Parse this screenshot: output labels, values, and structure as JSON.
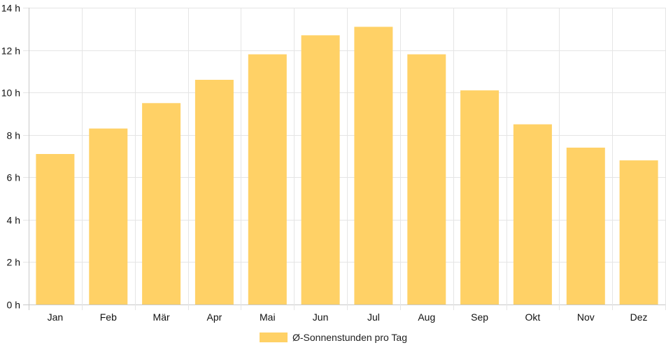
{
  "chart_data": {
    "type": "bar",
    "categories": [
      "Jan",
      "Feb",
      "Mär",
      "Apr",
      "Mai",
      "Jun",
      "Jul",
      "Aug",
      "Sep",
      "Okt",
      "Nov",
      "Dez"
    ],
    "series": [
      {
        "name": "Ø-Sonnenstunden pro Tag",
        "values": [
          7.1,
          8.3,
          9.5,
          10.6,
          11.8,
          12.7,
          13.1,
          11.8,
          10.1,
          8.5,
          7.4,
          6.8
        ],
        "color": "#FFD166"
      }
    ],
    "y_ticks": [
      "0 h",
      "2 h",
      "4 h",
      "6 h",
      "8 h",
      "10 h",
      "12 h",
      "14 h"
    ],
    "ylim": [
      0,
      14
    ],
    "y_step": 2,
    "title": "",
    "xlabel": "",
    "ylabel": "",
    "grid": true,
    "legend_position": "bottom-center",
    "colors": {
      "grid": "#e5e5e5",
      "axis": "#c8c8c8",
      "text": "#111111"
    }
  }
}
